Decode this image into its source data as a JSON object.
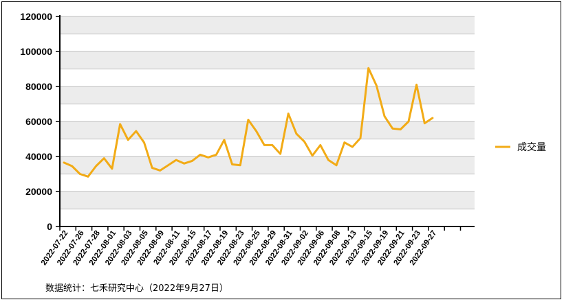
{
  "chart_data": {
    "type": "line",
    "y_axis": {
      "min": 0,
      "max": 120000,
      "ticks": [
        0,
        20000,
        40000,
        60000,
        80000,
        100000,
        120000
      ]
    },
    "x_tick_labels": [
      "2022-07-22",
      "2022-07-26",
      "2022-07-28",
      "2022-08-01",
      "2022-08-03",
      "2022-08-05",
      "2022-08-09",
      "2022-08-11",
      "2022-08-15",
      "2022-08-17",
      "2022-08-19",
      "2022-08-23",
      "2022-08-25",
      "2022-08-29",
      "2022-08-31",
      "2022-09-02",
      "2022-09-06",
      "2022-09-08",
      "2022-09-13",
      "2022-09-15",
      "2022-09-19",
      "2022-09-21",
      "2022-09-23",
      "2022-09-27"
    ],
    "series": [
      {
        "name": "成交量",
        "color": "#f2ab16",
        "values": [
          36500,
          34500,
          30000,
          28500,
          34500,
          39000,
          33000,
          58500,
          49500,
          54500,
          48000,
          33500,
          32000,
          35000,
          38000,
          36000,
          37500,
          41000,
          39500,
          41000,
          49500,
          35500,
          35000,
          61000,
          54500,
          46500,
          46500,
          41500,
          64500,
          53000,
          48500,
          40500,
          46500,
          38000,
          35000,
          48000,
          45500,
          50500,
          90500,
          80500,
          63000,
          56000,
          55500,
          60000,
          81000,
          59000,
          62000
        ]
      }
    ],
    "grid": "horizontal-banded",
    "legend_position": "right"
  },
  "footer_text": "数据统计：七禾研究中心（2022年9月27日）"
}
